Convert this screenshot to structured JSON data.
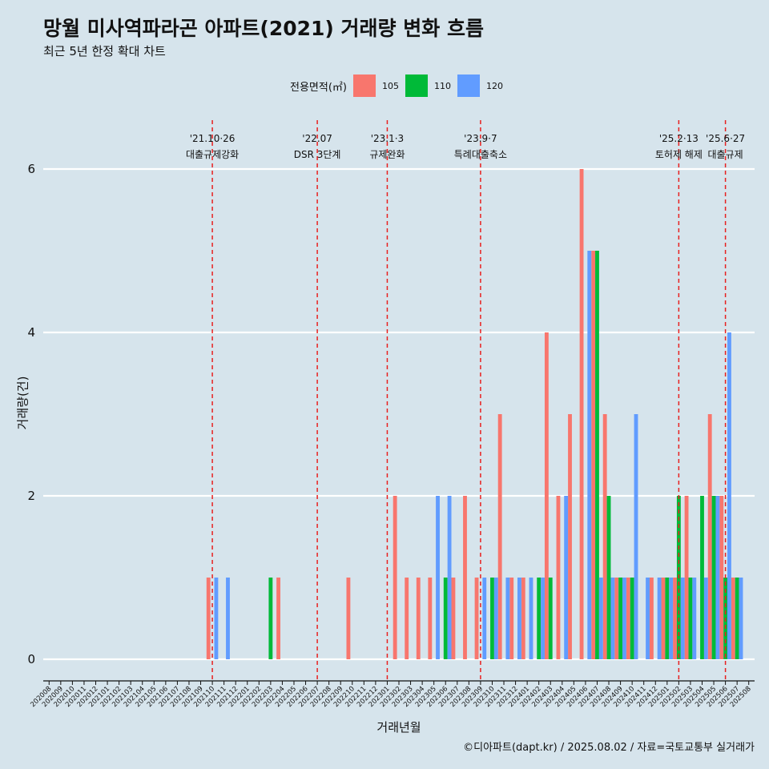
{
  "title": "망월 미사역파라곤 아파트(2021) 거래량 변화 흐름",
  "subtitle": "최근 5년 한정 확대 차트",
  "caption": "©디아파트(dapt.kr) / 2025.08.02 / 자료=국토교통부 실거래가",
  "legend": {
    "title": "전용면적(㎡)",
    "items": [
      {
        "label": "105",
        "color": "#f8766d"
      },
      {
        "label": "110",
        "color": "#00ba38"
      },
      {
        "label": "120",
        "color": "#619cff"
      }
    ]
  },
  "chart_data": {
    "type": "bar",
    "xlabel": "거래년월",
    "ylabel": "거래량(건)",
    "ylim": [
      0,
      6
    ],
    "yticks": [
      0,
      2,
      4,
      6
    ],
    "grid": true,
    "legend_position": "top",
    "categories": [
      "202008",
      "202009",
      "202010",
      "202011",
      "202012",
      "202101",
      "202102",
      "202103",
      "202104",
      "202105",
      "202106",
      "202107",
      "202108",
      "202109",
      "202110",
      "202111",
      "202112",
      "202201",
      "202202",
      "202203",
      "202204",
      "202205",
      "202206",
      "202207",
      "202208",
      "202209",
      "202210",
      "202211",
      "202212",
      "202301",
      "202302",
      "202303",
      "202304",
      "202305",
      "202306",
      "202307",
      "202308",
      "202309",
      "202310",
      "202311",
      "202312",
      "202401",
      "202402",
      "202403",
      "202404",
      "202405",
      "202406",
      "202407",
      "202408",
      "202409",
      "202410",
      "202411",
      "202412",
      "202501",
      "202502",
      "202503",
      "202504",
      "202505",
      "202506",
      "202507",
      "202508"
    ],
    "series": [
      {
        "name": "105",
        "color": "#f8766d",
        "points": [
          [
            "202110",
            1
          ],
          [
            "202204",
            1
          ],
          [
            "202210",
            1
          ],
          [
            "202302",
            2
          ],
          [
            "202303",
            1
          ],
          [
            "202304",
            1
          ],
          [
            "202305",
            1
          ],
          [
            "202307",
            1
          ],
          [
            "202308",
            2
          ],
          [
            "202309",
            1
          ],
          [
            "202311",
            3
          ],
          [
            "202312",
            1
          ],
          [
            "202401",
            1
          ],
          [
            "202403",
            4
          ],
          [
            "202404",
            2
          ],
          [
            "202405",
            3
          ],
          [
            "202406",
            6
          ],
          [
            "202407",
            5
          ],
          [
            "202408",
            3
          ],
          [
            "202409",
            1
          ],
          [
            "202410",
            1
          ],
          [
            "202412",
            1
          ],
          [
            "202501",
            1
          ],
          [
            "202502",
            1
          ],
          [
            "202503",
            2
          ],
          [
            "202505",
            3
          ],
          [
            "202506",
            2
          ],
          [
            "202507",
            1
          ]
        ]
      },
      {
        "name": "110",
        "color": "#00ba38",
        "points": [
          [
            "202203",
            1
          ],
          [
            "202306",
            1
          ],
          [
            "202310",
            1
          ],
          [
            "202402",
            1
          ],
          [
            "202403",
            1
          ],
          [
            "202407",
            5
          ],
          [
            "202408",
            2
          ],
          [
            "202409",
            1
          ],
          [
            "202410",
            1
          ],
          [
            "202501",
            1
          ],
          [
            "202502",
            2
          ],
          [
            "202503",
            1
          ],
          [
            "202504",
            2
          ],
          [
            "202505",
            2
          ],
          [
            "202506",
            1
          ],
          [
            "202507",
            1
          ]
        ]
      },
      {
        "name": "120",
        "color": "#619cff",
        "points": [
          [
            "202110",
            1
          ],
          [
            "202111",
            1
          ],
          [
            "202305",
            2
          ],
          [
            "202306",
            2
          ],
          [
            "202309",
            1
          ],
          [
            "202310",
            1
          ],
          [
            "202311",
            1
          ],
          [
            "202312",
            1
          ],
          [
            "202401",
            1
          ],
          [
            "202402",
            1
          ],
          [
            "202404",
            2
          ],
          [
            "202406",
            5
          ],
          [
            "202407",
            1
          ],
          [
            "202408",
            1
          ],
          [
            "202409",
            1
          ],
          [
            "202410",
            3
          ],
          [
            "202411",
            1
          ],
          [
            "202412",
            1
          ],
          [
            "202501",
            1
          ],
          [
            "202502",
            1
          ],
          [
            "202503",
            1
          ],
          [
            "202504",
            1
          ],
          [
            "202505",
            2
          ],
          [
            "202506",
            4
          ],
          [
            "202507",
            1
          ]
        ]
      }
    ],
    "annotations": [
      {
        "month": "202110",
        "date": "'21.10·26",
        "label": "대출규제강화"
      },
      {
        "month": "202207",
        "date": "'22.07",
        "label": "DSR 3단계"
      },
      {
        "month": "202301",
        "date": "'23.1·3",
        "label": "규제완화"
      },
      {
        "month": "202309",
        "date": "'23.9·7",
        "label": "특례대출축소"
      },
      {
        "month": "202502",
        "date": "'25.2·13",
        "label": "토허제 해제"
      },
      {
        "month": "202506",
        "date": "'25.6·27",
        "label": "대출규제"
      }
    ]
  }
}
